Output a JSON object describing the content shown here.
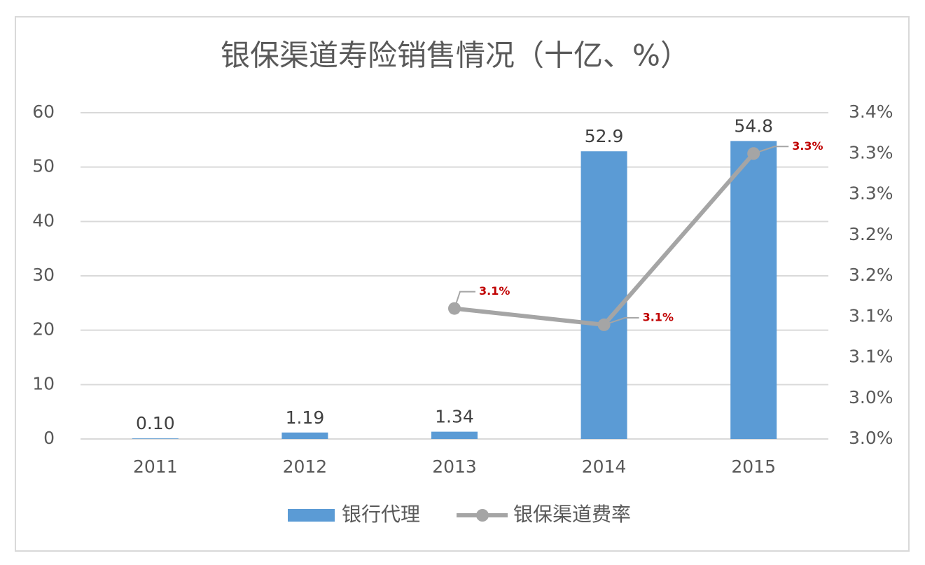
{
  "chart_data": {
    "type": "bar-line",
    "title": "银保渠道寿险销售情况（十亿、%）",
    "categories": [
      "2011",
      "2012",
      "2013",
      "2014",
      "2015"
    ],
    "series": [
      {
        "name": "银行代理",
        "type": "bar",
        "color": "#5b9bd5",
        "values": [
          0.1,
          1.19,
          1.34,
          52.9,
          54.8
        ],
        "value_labels": [
          "0.10",
          "1.19",
          "1.34",
          "52.9",
          "54.8"
        ]
      },
      {
        "name": "银保渠道费率",
        "type": "line",
        "axis": "y2",
        "color": "#a5a5a5",
        "values": [
          null,
          null,
          3.12,
          3.1,
          3.31
        ],
        "value_labels": [
          null,
          null,
          "3.1%",
          "3.1%",
          "3.3%"
        ]
      }
    ],
    "ylim": [
      0,
      60
    ],
    "yticks": [
      0,
      10,
      20,
      30,
      40,
      50,
      60
    ],
    "y2lim": [
      2.96,
      3.36
    ],
    "y2ticks": [
      {
        "value": 2.96,
        "label": "3.0%"
      },
      {
        "value": 3.01,
        "label": "3.0%"
      },
      {
        "value": 3.06,
        "label": "3.1%"
      },
      {
        "value": 3.11,
        "label": "3.1%"
      },
      {
        "value": 3.16,
        "label": "3.2%"
      },
      {
        "value": 3.21,
        "label": "3.2%"
      },
      {
        "value": 3.26,
        "label": "3.3%"
      },
      {
        "value": 3.31,
        "label": "3.3%"
      },
      {
        "value": 3.36,
        "label": "3.4%"
      }
    ],
    "grid": true,
    "legend": "bottom"
  }
}
